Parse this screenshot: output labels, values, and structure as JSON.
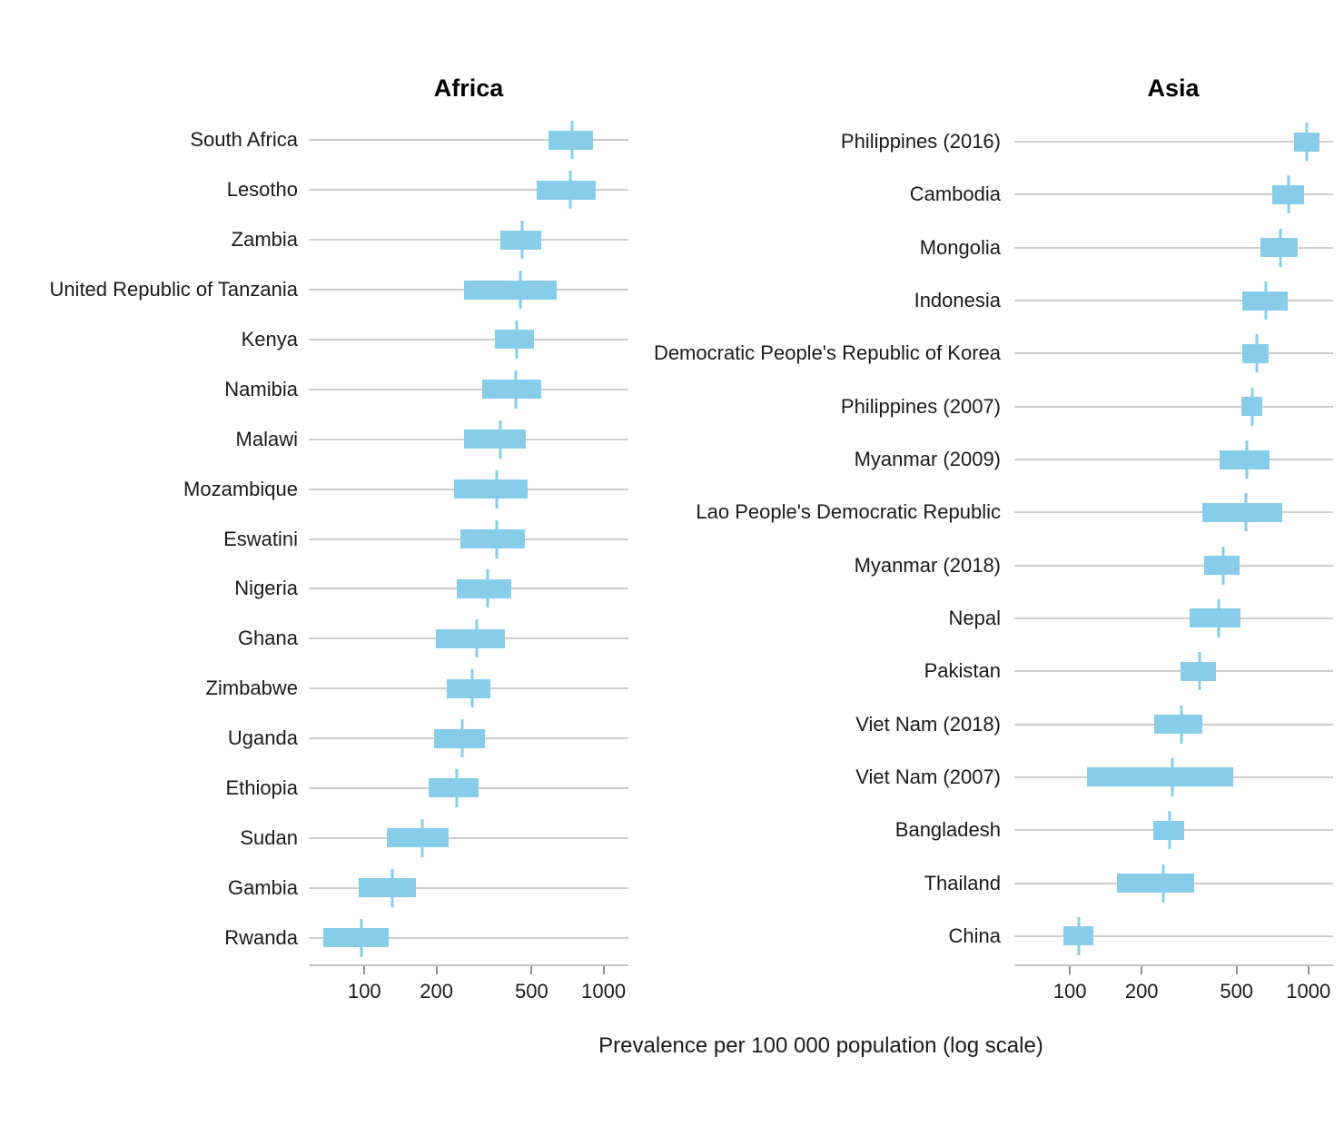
{
  "chart_data": {
    "type": "bar",
    "subtype": "horizontal_interval_crossbar",
    "orientation": "horizontal",
    "scale": "log10",
    "xlabel": "Prevalence per 100 000 population (log scale)",
    "x_ticks": [
      100,
      200,
      500,
      1000
    ],
    "x_tick_labels": [
      "100",
      "200",
      "500",
      "1000"
    ],
    "xlim": [
      58.5,
      1270
    ],
    "grid": "horizontal_gridlines_only",
    "legend": "none",
    "bar_color": "#87CDEA",
    "gridline_color": "#CDCDCD",
    "axis_line_color": "#C4C4C4",
    "tick_color": "#8F8F8F",
    "text_color": "#1A1A1A",
    "value_meaning": {
      "lo": "interval lower bound",
      "mid": "point estimate",
      "hi": "interval upper bound"
    },
    "panels": [
      {
        "title": "Africa",
        "rows": [
          {
            "label": "South Africa",
            "lo": 590,
            "mid": 737,
            "hi": 900
          },
          {
            "label": "Lesotho",
            "lo": 523,
            "mid": 727,
            "hi": 930
          },
          {
            "label": "Zambia",
            "lo": 370,
            "mid": 455,
            "hi": 548
          },
          {
            "label": "United Republic of Tanzania",
            "lo": 260,
            "mid": 449,
            "hi": 634
          },
          {
            "label": "Kenya",
            "lo": 352,
            "mid": 433,
            "hi": 511
          },
          {
            "label": "Namibia",
            "lo": 312,
            "mid": 430,
            "hi": 548
          },
          {
            "label": "Malawi",
            "lo": 260,
            "mid": 369,
            "hi": 471
          },
          {
            "label": "Mozambique",
            "lo": 238,
            "mid": 356,
            "hi": 480
          },
          {
            "label": "Eswatini",
            "lo": 252,
            "mid": 356,
            "hi": 467
          },
          {
            "label": "Nigeria",
            "lo": 243,
            "mid": 327,
            "hi": 410
          },
          {
            "label": "Ghana",
            "lo": 199,
            "mid": 295,
            "hi": 387
          },
          {
            "label": "Zimbabwe",
            "lo": 221,
            "mid": 282,
            "hi": 336
          },
          {
            "label": "Uganda",
            "lo": 195,
            "mid": 256,
            "hi": 318
          },
          {
            "label": "Ethiopia",
            "lo": 186,
            "mid": 243,
            "hi": 300
          },
          {
            "label": "Sudan",
            "lo": 124,
            "mid": 175,
            "hi": 224
          },
          {
            "label": "Gambia",
            "lo": 95,
            "mid": 131,
            "hi": 164
          },
          {
            "label": "Rwanda",
            "lo": 67,
            "mid": 97,
            "hi": 126
          }
        ]
      },
      {
        "title": "Asia",
        "rows": [
          {
            "label": "Philippines (2016)",
            "lo": 869,
            "mid": 985,
            "hi": 1114
          },
          {
            "label": "Cambodia",
            "lo": 704,
            "mid": 824,
            "hi": 959
          },
          {
            "label": "Mongolia",
            "lo": 632,
            "mid": 764,
            "hi": 900
          },
          {
            "label": "Indonesia",
            "lo": 530,
            "mid": 666,
            "hi": 822
          },
          {
            "label": "Democratic People's Republic of Korea",
            "lo": 530,
            "mid": 608,
            "hi": 681
          },
          {
            "label": "Philippines (2007)",
            "lo": 522,
            "mid": 583,
            "hi": 643
          },
          {
            "label": "Myanmar (2009)",
            "lo": 425,
            "mid": 550,
            "hi": 689
          },
          {
            "label": "Lao People's Democratic Republic",
            "lo": 358,
            "mid": 545,
            "hi": 777
          },
          {
            "label": "Myanmar (2018)",
            "lo": 366,
            "mid": 440,
            "hi": 513
          },
          {
            "label": "Nepal",
            "lo": 318,
            "mid": 421,
            "hi": 520
          },
          {
            "label": "Pakistan",
            "lo": 290,
            "mid": 350,
            "hi": 411
          },
          {
            "label": "Viet Nam (2018)",
            "lo": 226,
            "mid": 293,
            "hi": 358
          },
          {
            "label": "Viet Nam (2007)",
            "lo": 118,
            "mid": 268,
            "hi": 482
          },
          {
            "label": "Bangladesh",
            "lo": 224,
            "mid": 263,
            "hi": 302
          },
          {
            "label": "Thailand",
            "lo": 158,
            "mid": 246,
            "hi": 333
          },
          {
            "label": "China",
            "lo": 94,
            "mid": 109,
            "hi": 125
          }
        ]
      }
    ]
  }
}
